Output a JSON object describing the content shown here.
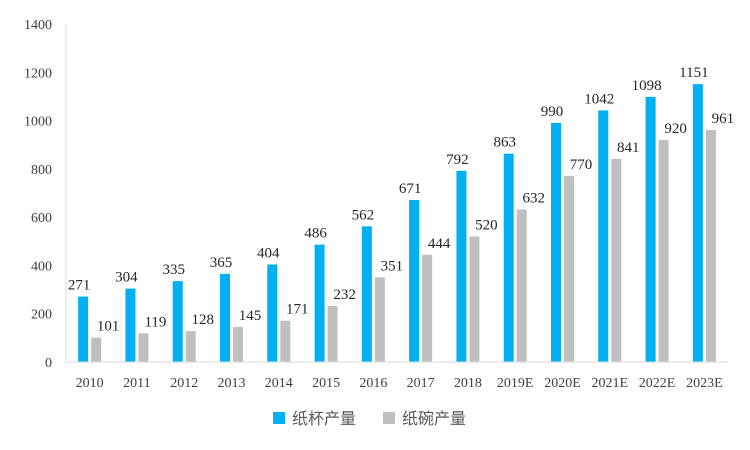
{
  "chart_data": {
    "type": "bar",
    "categories": [
      "2010",
      "2011",
      "2012",
      "2013",
      "2014",
      "2015",
      "2016",
      "2017",
      "2018",
      "2019E",
      "2020E",
      "2021E",
      "2022E",
      "2023E"
    ],
    "series": [
      {
        "name": "纸杯产量",
        "color": "#00b0f0",
        "values": [
          271,
          304,
          335,
          365,
          404,
          486,
          562,
          671,
          792,
          863,
          990,
          1042,
          1098,
          1151
        ]
      },
      {
        "name": "纸碗产量",
        "color": "#bfbfbf",
        "values": [
          101,
          119,
          128,
          145,
          171,
          232,
          351,
          444,
          520,
          632,
          770,
          841,
          920,
          961
        ]
      }
    ],
    "title": "",
    "xlabel": "",
    "ylabel": "",
    "ylim": [
      0,
      1400
    ],
    "yticks": [
      0,
      200,
      400,
      600,
      800,
      1000,
      1200,
      1400
    ],
    "grid": false,
    "legend_position": "bottom"
  }
}
